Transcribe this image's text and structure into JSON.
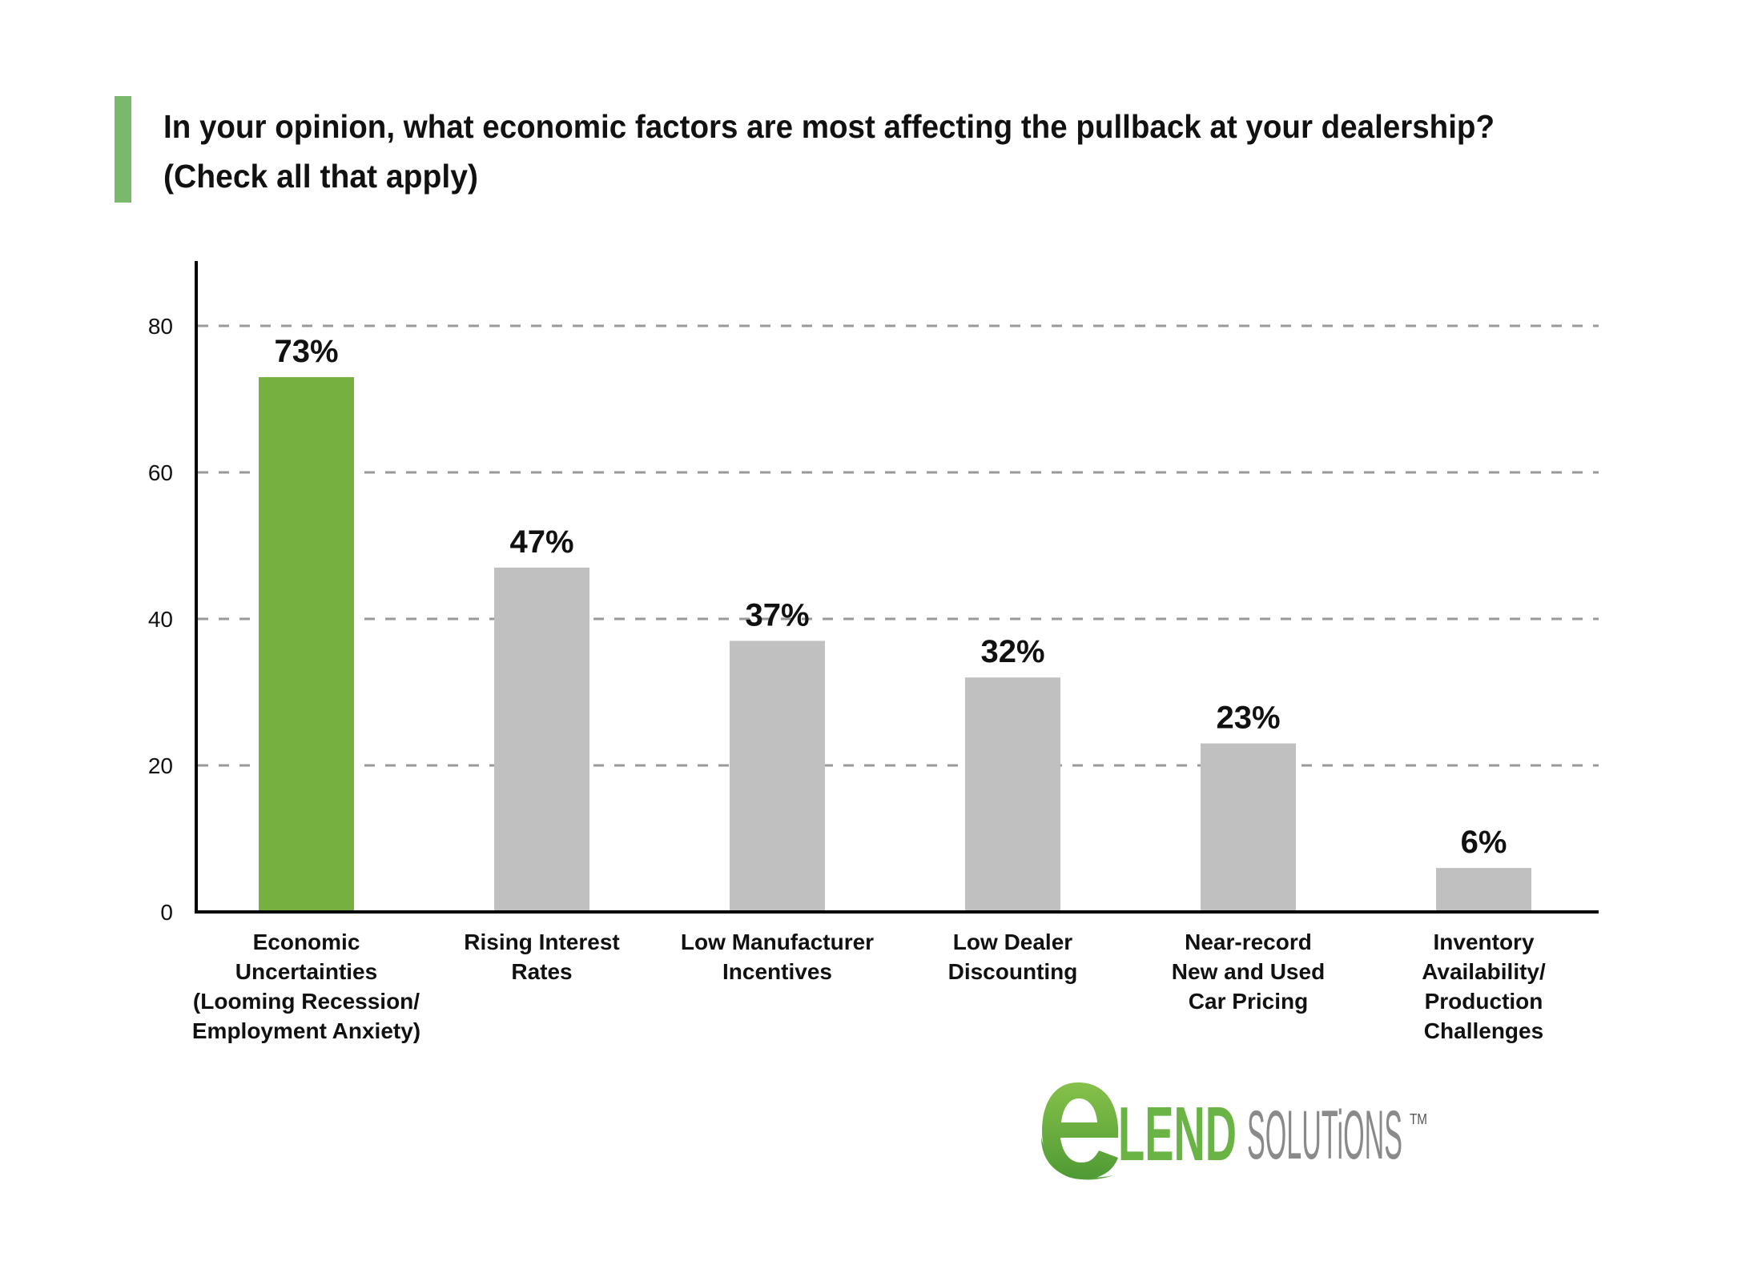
{
  "header": {
    "title_lines": [
      "In your opinion, what economic factors are most affecting the pullback at your dealership?",
      "(Check all that apply)"
    ],
    "accent_color": "#7ab96b"
  },
  "chart_data": {
    "type": "bar",
    "title": "In your opinion, what economic factors are most affecting the pullback at your dealership? (Check all that apply)",
    "xlabel": "",
    "ylabel": "",
    "ylim": [
      0,
      80
    ],
    "yticks": [
      0,
      20,
      40,
      60,
      80
    ],
    "grid": true,
    "legend": "none",
    "categories": [
      "Economic Uncertainties (Looming Recession/ Employment Anxiety)",
      "Rising Interest Rates",
      "Low Manufacturer Incentives",
      "Low Dealer Discounting",
      "Near-record New and Used Car Pricing",
      "Inventory Availability/ Production Challenges"
    ],
    "category_label_lines": [
      [
        "Economic",
        "Uncertainties",
        "(Looming Recession/",
        "Employment Anxiety)"
      ],
      [
        "Rising Interest",
        "Rates"
      ],
      [
        "Low Manufacturer",
        "Incentives"
      ],
      [
        "Low Dealer",
        "Discounting"
      ],
      [
        "Near-record",
        "New and Used",
        "Car Pricing"
      ],
      [
        "Inventory",
        "Availability/",
        "Production",
        "Challenges"
      ]
    ],
    "values": [
      73,
      47,
      37,
      32,
      23,
      6
    ],
    "data_labels": [
      "73%",
      "47%",
      "37%",
      "32%",
      "23%",
      "6%"
    ],
    "unit": "%",
    "colors": {
      "highlight": "#76b041",
      "default": "#c0c0c0",
      "grid": "#999999",
      "axis": "#000000"
    },
    "highlight_index": 0
  },
  "logo": {
    "mark": "e",
    "word1": "LEND",
    "word2": "SOLUTiONS",
    "trademark": "TM",
    "green": "#6ab345",
    "gray": "#8a8a8a"
  }
}
